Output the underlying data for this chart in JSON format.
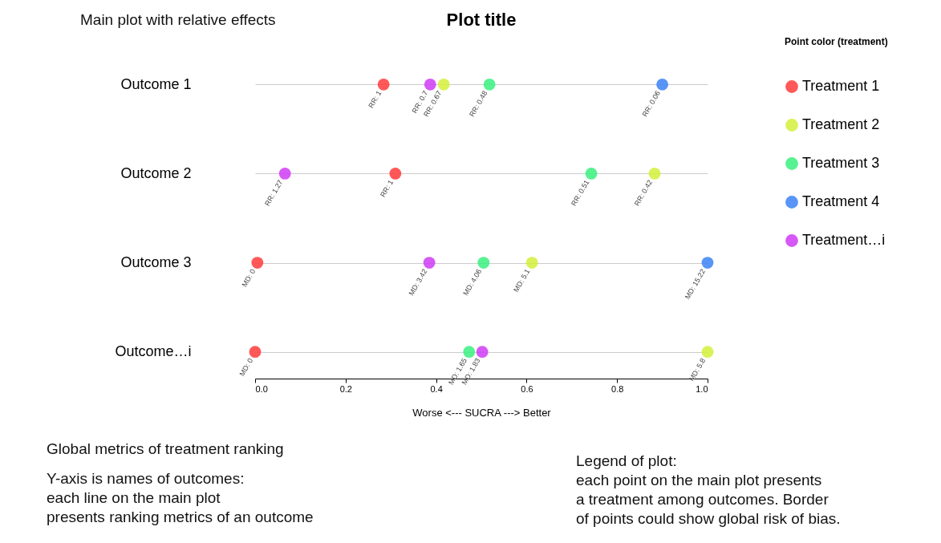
{
  "chart_data": {
    "type": "scatter",
    "orientation": "horizontal",
    "title": "Plot title",
    "xlabel": "Worse <--- SUCRA ---> Better",
    "legend_title": "Point color (treatment)",
    "categories": [
      "Outcome 1",
      "Outcome 2",
      "Outcome 3",
      "Outcome…i"
    ],
    "xlim": [
      0,
      1
    ],
    "xticks": [
      {
        "value": 0,
        "label": "0.0"
      },
      {
        "value": 0.2,
        "label": "0.2"
      },
      {
        "value": 0.4,
        "label": "0.4"
      },
      {
        "value": 0.6,
        "label": "0.6"
      },
      {
        "value": 0.8,
        "label": "0.8"
      },
      {
        "value": 1,
        "label": "1.0"
      }
    ],
    "series": [
      {
        "name": "Treatment 1",
        "color": "#ff3b3b",
        "values": [
          0.284,
          0.31,
          0.005,
          0.0
        ]
      },
      {
        "name": "Treatment 2",
        "color": "#d4f03a",
        "values": [
          0.417,
          0.883,
          0.612,
          1.0
        ]
      },
      {
        "name": "Treatment 3",
        "color": "#3af07f",
        "values": [
          0.518,
          0.743,
          0.505,
          0.473
        ]
      },
      {
        "name": "Treatment 4",
        "color": "#3b82f6",
        "values": [
          0.9,
          null,
          1.0,
          null
        ]
      },
      {
        "name": "Treatment…i",
        "color": "#cf3bf5",
        "values": [
          0.387,
          0.066,
          0.385,
          0.502
        ]
      }
    ],
    "grid": "y",
    "legend": "right",
    "marker": "circle",
    "annotations": [
      "Main plot with relative effects",
      "Global metrics of treatment ranking",
      "Y-axis is names of outcomes:\neach line on the main plot\npresents ranking metrics of an outcome",
      "Legend of plot:\neach point on the main plot presents\na treatment among outcomes. Border\nof points could show global risk of bias.",
      {
        "text": "RR: 1",
        "x": 0.284,
        "y": "Outcome 1"
      },
      {
        "text": "RR: 0.7",
        "x": 0.387,
        "y": "Outcome 1"
      },
      {
        "text": "RR: 0.67",
        "x": 0.417,
        "y": "Outcome 1"
      },
      {
        "text": "RR: 0.48",
        "x": 0.518,
        "y": "Outcome 1"
      },
      {
        "text": "RR: 0.06",
        "x": 0.9,
        "y": "Outcome 1"
      },
      {
        "text": "RR: 1.27",
        "x": 0.066,
        "y": "Outcome 2"
      },
      {
        "text": "RR: 1",
        "x": 0.31,
        "y": "Outcome 2"
      },
      {
        "text": "RR: 0.51",
        "x": 0.743,
        "y": "Outcome 2"
      },
      {
        "text": "RR: 0.42",
        "x": 0.883,
        "y": "Outcome 2"
      },
      {
        "text": "MD: 0",
        "x": 0.005,
        "y": "Outcome 3"
      },
      {
        "text": "MD: 3.42",
        "x": 0.385,
        "y": "Outcome 3"
      },
      {
        "text": "MD: 4.06",
        "x": 0.505,
        "y": "Outcome 3"
      },
      {
        "text": "MD: 5.1",
        "x": 0.612,
        "y": "Outcome 3"
      },
      {
        "text": "MD: 15.22",
        "x": 1.0,
        "y": "Outcome 3"
      },
      {
        "text": "MD: 0",
        "x": 0.0,
        "y": "Outcome…i"
      },
      {
        "text": "MD: 1.65",
        "x": 0.473,
        "y": "Outcome…i"
      },
      {
        "text": "MD: 1.83",
        "x": 0.502,
        "y": "Outcome…i"
      },
      {
        "text": "MD: 5.8",
        "x": 1.0,
        "y": "Outcome…i"
      }
    ]
  }
}
